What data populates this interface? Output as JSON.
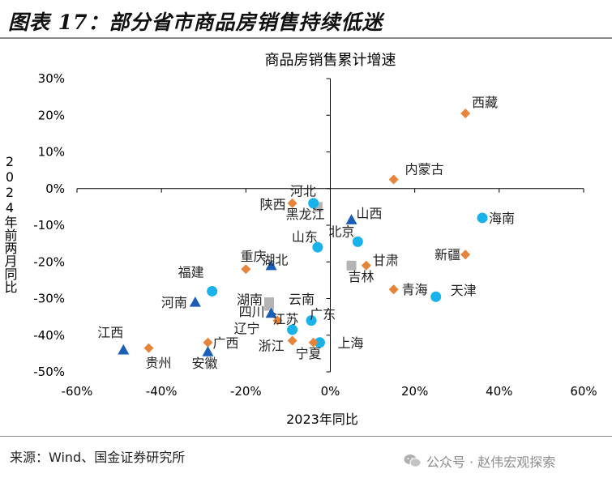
{
  "figure_title": "图表 17：部分省市商品房销售持续低迷",
  "source": "来源：Wind、国金证券研究所",
  "watermark": "公众号 · 赵伟宏观探索",
  "chart_data": {
    "type": "scatter",
    "title": "商品房销售累计增速",
    "xlabel": "2023年同比",
    "ylabel": "2024年前两月同比",
    "xlim": [
      -60,
      60
    ],
    "ylim": [
      -50,
      30
    ],
    "xticks": [
      "-60%",
      "-40%",
      "-20%",
      "0%",
      "20%",
      "40%",
      "60%"
    ],
    "yticks": [
      "30%",
      "20%",
      "10%",
      "0%",
      "-10%",
      "-20%",
      "-30%",
      "-40%",
      "-50%"
    ],
    "grid": false,
    "marker_colors": {
      "diamond": "#E6843A",
      "circle": "#19B2EA",
      "triangle": "#1A5EB8",
      "square": "#B4B4B4"
    },
    "points": [
      {
        "name": "西藏",
        "x": 32,
        "y": 20.5,
        "marker": "diamond"
      },
      {
        "name": "河北",
        "x": -3,
        "y": -5,
        "marker": "square"
      },
      {
        "name": "内蒙古",
        "x": 15,
        "y": 2.5,
        "marker": "diamond"
      },
      {
        "name": "陕西",
        "x": -9,
        "y": -4,
        "marker": "diamond"
      },
      {
        "name": "黑龙江",
        "x": -4,
        "y": -4,
        "marker": "circle"
      },
      {
        "name": "山西",
        "x": 5,
        "y": -8.5,
        "marker": "triangle"
      },
      {
        "name": "海南",
        "x": 36,
        "y": -8,
        "marker": "circle"
      },
      {
        "name": "山东",
        "x": -3,
        "y": -16,
        "marker": "circle"
      },
      {
        "name": "北京",
        "x": 6.5,
        "y": -14.5,
        "marker": "circle"
      },
      {
        "name": "甘肃",
        "x": 8.5,
        "y": -21,
        "marker": "diamond"
      },
      {
        "name": "吉林",
        "x": 5,
        "y": -21,
        "marker": "square"
      },
      {
        "name": "新疆",
        "x": 32,
        "y": -18,
        "marker": "diamond"
      },
      {
        "name": "重庆",
        "x": -14,
        "y": -21,
        "marker": "triangle"
      },
      {
        "name": "湖北",
        "x": -20,
        "y": -22,
        "marker": "diamond"
      },
      {
        "name": "福建",
        "x": -28,
        "y": -28,
        "marker": "circle"
      },
      {
        "name": "云南",
        "x": -14.5,
        "y": -31,
        "marker": "square"
      },
      {
        "name": "湖南",
        "x": -14.5,
        "y": -32,
        "marker": "square"
      },
      {
        "name": "四川",
        "x": -14,
        "y": -34,
        "marker": "triangle"
      },
      {
        "name": "河南",
        "x": -32,
        "y": -31,
        "marker": "triangle"
      },
      {
        "name": "青海",
        "x": 15,
        "y": -27.5,
        "marker": "diamond"
      },
      {
        "name": "天津",
        "x": 25,
        "y": -29.5,
        "marker": "circle"
      },
      {
        "name": "江苏",
        "x": -12.5,
        "y": -36,
        "marker": "diamond"
      },
      {
        "name": "广东",
        "x": -4.5,
        "y": -36,
        "marker": "circle"
      },
      {
        "name": "辽宁",
        "x": -9,
        "y": -38.5,
        "marker": "circle"
      },
      {
        "name": "浙江",
        "x": -9,
        "y": -41.5,
        "marker": "diamond"
      },
      {
        "name": "上海",
        "x": -2.5,
        "y": -42,
        "marker": "circle"
      },
      {
        "name": "宁夏",
        "x": -4,
        "y": -42,
        "marker": "diamond"
      },
      {
        "name": "江西",
        "x": -49,
        "y": -44,
        "marker": "triangle"
      },
      {
        "name": "贵州",
        "x": -43,
        "y": -43.5,
        "marker": "diamond"
      },
      {
        "name": "广西",
        "x": -29,
        "y": -42,
        "marker": "diamond"
      },
      {
        "name": "安徽",
        "x": -29,
        "y": -44.5,
        "marker": "triangle"
      }
    ]
  }
}
